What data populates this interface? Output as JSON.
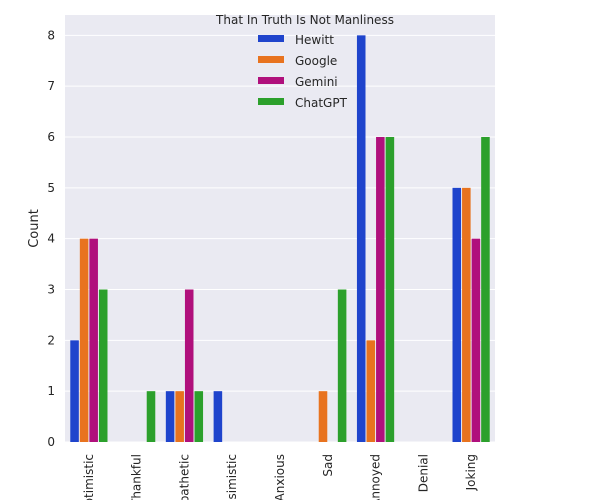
{
  "chart_data": {
    "type": "bar",
    "title": "",
    "xlabel": "",
    "ylabel": "Count",
    "ylim": [
      0,
      8.4
    ],
    "yticks": [
      0,
      1,
      2,
      3,
      4,
      5,
      6,
      7,
      8
    ],
    "grid": true,
    "legend": {
      "title": "That In Truth Is Not Manliness",
      "placement": "top-center"
    },
    "categories": [
      "Optimistic",
      "Thankful",
      "Empathetic",
      "Pessimistic",
      "Anxious",
      "Sad",
      "Annoyed",
      "Denial",
      "Joking"
    ],
    "series": [
      {
        "name": "Hewitt",
        "color": "#1f44cc",
        "values": [
          2,
          0,
          1,
          1,
          0,
          0,
          8,
          0,
          5
        ]
      },
      {
        "name": "Google",
        "color": "#e8731f",
        "values": [
          4,
          0,
          1,
          0,
          0,
          1,
          2,
          0,
          5
        ]
      },
      {
        "name": "Gemini",
        "color": "#b0107c",
        "values": [
          4,
          0,
          3,
          0,
          0,
          0,
          6,
          0,
          4
        ]
      },
      {
        "name": "ChatGPT",
        "color": "#2ca02c",
        "values": [
          3,
          1,
          1,
          0,
          0,
          3,
          6,
          0,
          6
        ]
      }
    ]
  }
}
